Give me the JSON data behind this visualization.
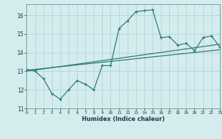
{
  "title": "",
  "xlabel": "Humidex (Indice chaleur)",
  "ylabel": "",
  "bg_color": "#d4ecee",
  "grid_color": "#aed4d8",
  "line_color": "#2a7a6e",
  "xlim": [
    0,
    23
  ],
  "ylim": [
    11,
    16.6
  ],
  "yticks": [
    11,
    12,
    13,
    14,
    15,
    16
  ],
  "xticks": [
    0,
    1,
    2,
    3,
    4,
    5,
    6,
    7,
    8,
    9,
    10,
    11,
    12,
    13,
    14,
    15,
    16,
    17,
    18,
    19,
    20,
    21,
    22,
    23
  ],
  "line1_x": [
    0,
    1,
    2,
    3,
    4,
    5,
    6,
    7,
    8,
    9,
    10,
    11,
    12,
    13,
    14,
    15,
    16,
    17,
    18,
    19,
    20,
    21,
    22,
    23
  ],
  "line1_y": [
    13.1,
    13.0,
    12.6,
    11.8,
    11.5,
    12.0,
    12.5,
    12.3,
    12.0,
    13.3,
    13.3,
    15.3,
    15.7,
    16.2,
    16.25,
    16.3,
    14.8,
    14.85,
    14.4,
    14.5,
    14.1,
    14.8,
    14.9,
    14.3
  ],
  "line2_x": [
    0,
    23
  ],
  "line2_y": [
    13.05,
    14.15
  ],
  "line3_x": [
    0,
    23
  ],
  "line3_y": [
    13.0,
    14.45
  ]
}
